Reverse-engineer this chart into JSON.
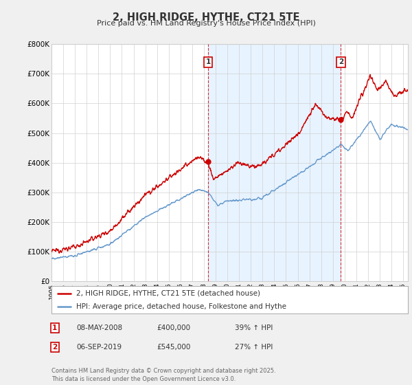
{
  "title": "2, HIGH RIDGE, HYTHE, CT21 5TE",
  "subtitle": "Price paid vs. HM Land Registry's House Price Index (HPI)",
  "bg_color": "#f0f0f0",
  "plot_bg_color": "#ffffff",
  "x_start_year": 1995,
  "x_end_year": 2025,
  "y_min": 0,
  "y_max": 800000,
  "y_ticks": [
    0,
    100000,
    200000,
    300000,
    400000,
    500000,
    600000,
    700000,
    800000
  ],
  "y_tick_labels": [
    "£0",
    "£100K",
    "£200K",
    "£300K",
    "£400K",
    "£500K",
    "£600K",
    "£700K",
    "£800K"
  ],
  "sale1_date": "08-MAY-2008",
  "sale1_year": 2008.36,
  "sale1_price": 400000,
  "sale1_hpi_pct": "39%",
  "sale2_date": "06-SEP-2019",
  "sale2_year": 2019.68,
  "sale2_price": 545000,
  "sale2_hpi_pct": "27%",
  "line1_color": "#cc0000",
  "line2_color": "#6699cc",
  "shade_color": "#ddeeff",
  "legend_label1": "2, HIGH RIDGE, HYTHE, CT21 5TE (detached house)",
  "legend_label2": "HPI: Average price, detached house, Folkestone and Hythe",
  "footer": "Contains HM Land Registry data © Crown copyright and database right 2025.\nThis data is licensed under the Open Government Licence v3.0."
}
